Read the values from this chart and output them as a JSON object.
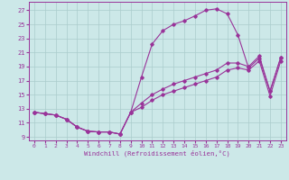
{
  "xlabel": "Windchill (Refroidissement éolien,°C)",
  "bg_color": "#cce8e8",
  "line_color": "#993399",
  "grid_color": "#aacccc",
  "xlim": [
    -0.5,
    23.5
  ],
  "ylim": [
    8.5,
    28.2
  ],
  "xticks": [
    0,
    1,
    2,
    3,
    4,
    5,
    6,
    7,
    8,
    9,
    10,
    11,
    12,
    13,
    14,
    15,
    16,
    17,
    18,
    19,
    20,
    21,
    22,
    23
  ],
  "yticks": [
    9,
    11,
    13,
    15,
    17,
    19,
    21,
    23,
    25,
    27
  ],
  "shared_x": [
    0,
    1,
    2,
    3,
    4,
    5,
    6,
    7,
    8
  ],
  "shared_y": [
    12.5,
    12.3,
    12.1,
    11.5,
    10.4,
    9.8,
    9.7,
    9.7,
    9.4
  ],
  "curve1_x": [
    9,
    10,
    11,
    12,
    13,
    14,
    15,
    16,
    17,
    18,
    19,
    20,
    21,
    22,
    23
  ],
  "curve1_y": [
    12.5,
    17.5,
    22.2,
    24.1,
    25.0,
    25.5,
    26.2,
    27.0,
    27.2,
    26.5,
    23.5,
    18.8,
    20.2,
    15.5,
    20.3
  ],
  "curve2_x": [
    9,
    10,
    11,
    12,
    13,
    14,
    15,
    16,
    17,
    18,
    19,
    20,
    21,
    22,
    23
  ],
  "curve2_y": [
    12.5,
    13.8,
    15.0,
    15.8,
    16.5,
    17.0,
    17.5,
    18.0,
    18.5,
    19.5,
    19.5,
    19.0,
    20.5,
    15.5,
    20.3
  ],
  "curve3_x": [
    9,
    10,
    11,
    12,
    13,
    14,
    15,
    16,
    17,
    18,
    19,
    20,
    21,
    22,
    23
  ],
  "curve3_y": [
    12.5,
    13.2,
    14.2,
    15.0,
    15.5,
    16.0,
    16.5,
    17.0,
    17.5,
    18.5,
    18.8,
    18.5,
    19.8,
    14.8,
    19.8
  ]
}
